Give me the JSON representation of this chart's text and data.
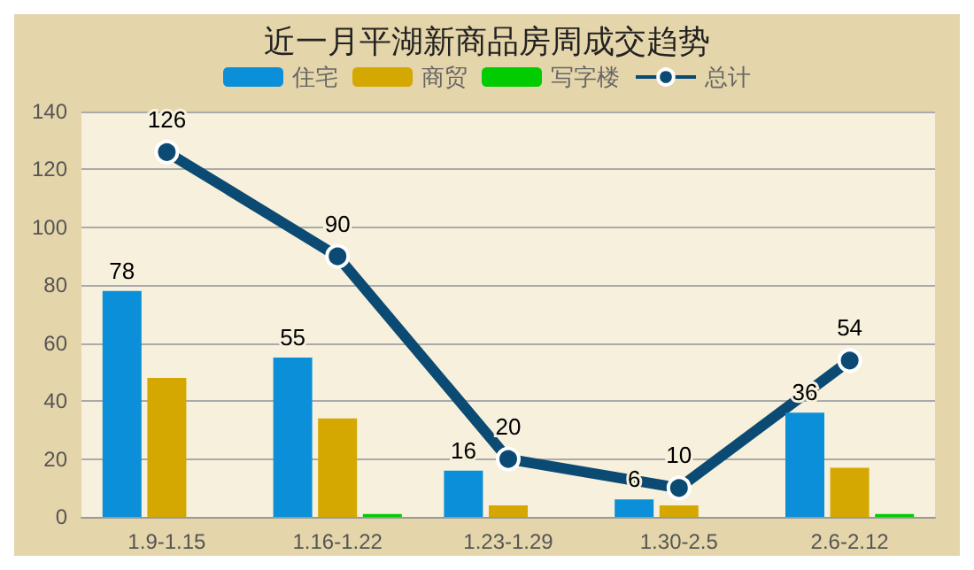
{
  "chart_data": {
    "type": "bar",
    "title": "近一月平湖新商品房周成交趋势",
    "categories": [
      "1.9-1.15",
      "1.16-1.22",
      "1.23-1.29",
      "1.30-2.5",
      "2.6-2.12"
    ],
    "series": [
      {
        "name": "住宅",
        "color": "#0a8fd8",
        "values": [
          78,
          55,
          16,
          6,
          36
        ],
        "value_labels": [
          "78",
          "55",
          "16",
          "6",
          "36"
        ]
      },
      {
        "name": "商贸",
        "color": "#d4a800",
        "values": [
          48,
          34,
          4,
          4,
          17
        ]
      },
      {
        "name": "写字楼",
        "color": "#00cc00",
        "values": [
          0,
          1,
          0,
          0,
          1
        ]
      },
      {
        "name": "总计",
        "type": "line",
        "color": "#0b4a72",
        "values": [
          126,
          90,
          20,
          10,
          54
        ],
        "value_labels": [
          "126",
          "90",
          "20",
          "10",
          "54"
        ],
        "marker": "circle"
      }
    ],
    "ylim": [
      0,
      140
    ],
    "yticks": [
      0,
      20,
      40,
      60,
      80,
      100,
      120,
      140
    ],
    "grid": "y",
    "legend": "top"
  }
}
